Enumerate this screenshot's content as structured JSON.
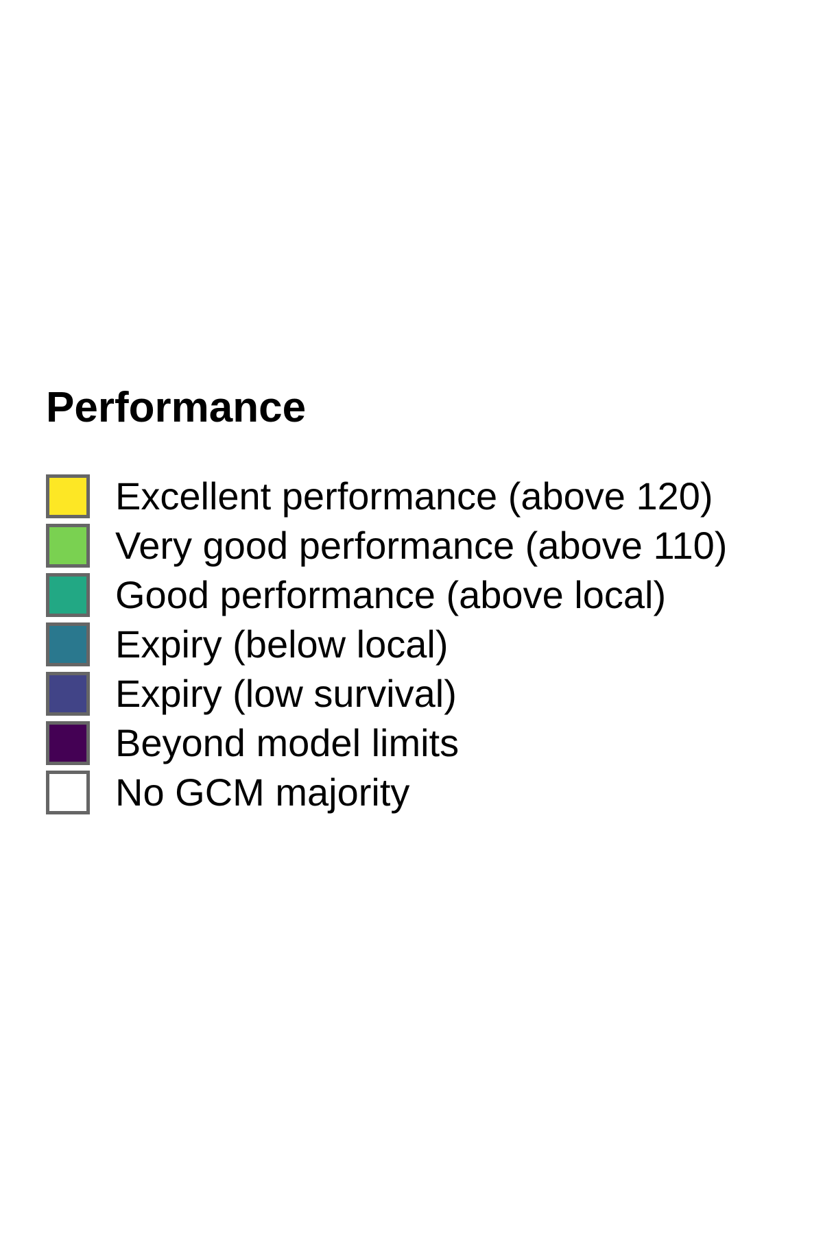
{
  "legend": {
    "title": "Performance",
    "swatch_border": "#666666",
    "items": [
      {
        "label": "Excellent performance (above 120)",
        "color": "#FDE725"
      },
      {
        "label": "Very good performance (above 110)",
        "color": "#7AD151"
      },
      {
        "label": "Good performance (above local)",
        "color": "#22A884"
      },
      {
        "label": "Expiry (below local)",
        "color": "#2A788E"
      },
      {
        "label": "Expiry (low survival)",
        "color": "#414487"
      },
      {
        "label": "Beyond model limits",
        "color": "#440154"
      },
      {
        "label": "No GCM majority",
        "color": "#FFFFFF"
      }
    ]
  }
}
